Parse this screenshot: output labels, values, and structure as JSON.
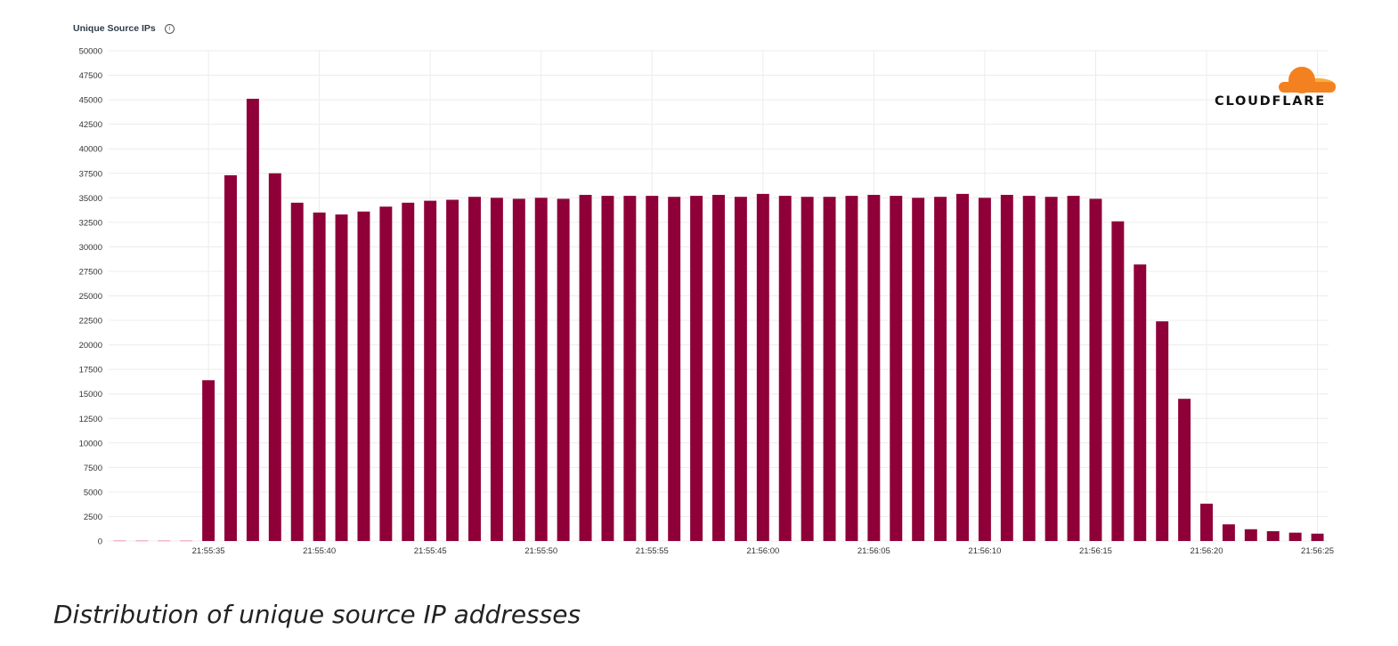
{
  "chart_data": {
    "type": "bar",
    "title": "Unique Source IPs",
    "ylim": [
      0,
      50000
    ],
    "ytick_step": 2500,
    "grid": true,
    "color": "#8f0039",
    "zero_color": "#f2b8c6",
    "x_tick_labels": [
      {
        "index": 4,
        "label": "21:55:35"
      },
      {
        "index": 9,
        "label": "21:55:40"
      },
      {
        "index": 14,
        "label": "21:55:45"
      },
      {
        "index": 19,
        "label": "21:55:50"
      },
      {
        "index": 24,
        "label": "21:55:55"
      },
      {
        "index": 29,
        "label": "21:56:00"
      },
      {
        "index": 34,
        "label": "21:56:05"
      },
      {
        "index": 39,
        "label": "21:56:10"
      },
      {
        "index": 44,
        "label": "21:56:15"
      },
      {
        "index": 49,
        "label": "21:56:20"
      },
      {
        "index": 54,
        "label": "21:56:25"
      }
    ],
    "values": [
      0,
      0,
      0,
      0,
      16400,
      37300,
      45100,
      37500,
      34500,
      33500,
      33300,
      33600,
      34100,
      34500,
      34700,
      34800,
      35100,
      35000,
      34900,
      35000,
      34900,
      35300,
      35200,
      35200,
      35200,
      35100,
      35200,
      35300,
      35100,
      35400,
      35200,
      35100,
      35100,
      35200,
      35300,
      35200,
      35000,
      35100,
      35400,
      35000,
      35300,
      35200,
      35100,
      35200,
      34900,
      32600,
      28200,
      22400,
      14500,
      3800,
      1700,
      1200,
      1000,
      850,
      750
    ]
  },
  "logo": {
    "text": "CLOUDFLARE",
    "color_orange": "#f48120",
    "color_light": "#faad3f"
  },
  "caption": "Distribution of unique source IP addresses"
}
